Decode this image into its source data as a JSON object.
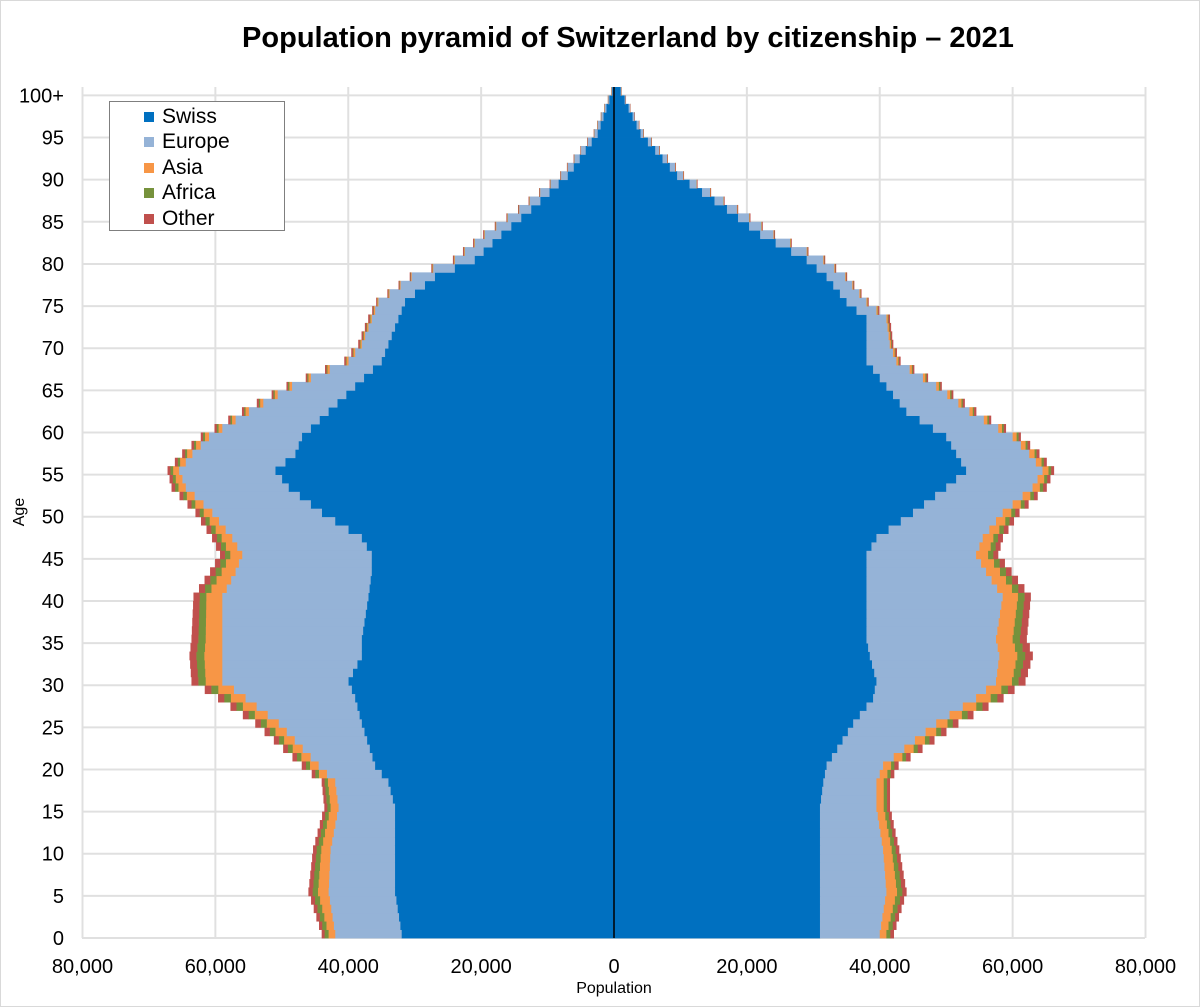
{
  "chart_data": {
    "type": "bar",
    "subtype": "population-pyramid",
    "title": "Population pyramid of Switzerland by citizenship – 2021",
    "xlabel": "Population",
    "ylabel": "Age",
    "xlim": [
      -80000,
      80000
    ],
    "x_tick_labels": [
      "80,000",
      "60,000",
      "40,000",
      "20,000",
      "0",
      "20,000",
      "40,000",
      "60,000",
      "80,000"
    ],
    "y_tick_labels": [
      "0",
      "5",
      "10",
      "15",
      "20",
      "25",
      "30",
      "35",
      "40",
      "45",
      "50",
      "55",
      "60",
      "65",
      "70",
      "75",
      "80",
      "85",
      "90",
      "95",
      "100+"
    ],
    "series_colors": {
      "Swiss": "#0070c0",
      "Europe": "#95b3d7",
      "Asia": "#f79646",
      "Africa": "#76923c",
      "Other": "#c0504d"
    },
    "legend": {
      "position": "top-left",
      "items": [
        {
          "name": "Swiss",
          "color": "#0070c0"
        },
        {
          "name": "Europe",
          "color": "#95b3d7"
        },
        {
          "name": "Asia",
          "color": "#f79646"
        },
        {
          "name": "Africa",
          "color": "#76923c"
        },
        {
          "name": "Other",
          "color": "#c0504d"
        }
      ]
    },
    "anchors": {
      "left": [
        [
          0,
          32000,
          10000,
          1000,
          600,
          400
        ],
        [
          5,
          33000,
          10000,
          1600,
          800,
          600
        ],
        [
          10,
          33000,
          9700,
          1400,
          700,
          500
        ],
        [
          15,
          33000,
          8500,
          1200,
          500,
          400
        ],
        [
          18,
          34000,
          8000,
          1100,
          500,
          400
        ],
        [
          20,
          36000,
          8500,
          1300,
          600,
          600
        ],
        [
          25,
          38000,
          12500,
          1800,
          900,
          800
        ],
        [
          28,
          39000,
          16500,
          2200,
          1000,
          900
        ],
        [
          30,
          40000,
          19000,
          2500,
          1100,
          1000
        ],
        [
          33,
          38000,
          21000,
          2700,
          1200,
          1000
        ],
        [
          35,
          38000,
          21000,
          2500,
          1100,
          1000
        ],
        [
          40,
          37000,
          22000,
          2400,
          1000,
          900
        ],
        [
          43,
          36500,
          20500,
          2100,
          900,
          800
        ],
        [
          45,
          36500,
          19500,
          1800,
          800,
          700
        ],
        [
          47,
          38000,
          19500,
          1600,
          700,
          700
        ],
        [
          50,
          44000,
          16500,
          1300,
          600,
          600
        ],
        [
          53,
          49000,
          15500,
          1100,
          500,
          500
        ],
        [
          55,
          51000,
          14500,
          900,
          400,
          400
        ],
        [
          57,
          48000,
          15500,
          800,
          300,
          400
        ],
        [
          59,
          47000,
          14000,
          600,
          300,
          300
        ],
        [
          62,
          43000,
          12000,
          500,
          200,
          300
        ],
        [
          65,
          39000,
          9500,
          400,
          200,
          200
        ],
        [
          68,
          35000,
          5000,
          300,
          100,
          200
        ],
        [
          70,
          34000,
          4000,
          200,
          100,
          200
        ],
        [
          73,
          32500,
          4000,
          200,
          100,
          200
        ],
        [
          75,
          31500,
          4000,
          150,
          50,
          100
        ],
        [
          78,
          27000,
          3500,
          100,
          50,
          100
        ],
        [
          80,
          21000,
          3000,
          100,
          50,
          100
        ],
        [
          83,
          17000,
          2500,
          80,
          40,
          80
        ],
        [
          86,
          12500,
          1800,
          60,
          30,
          60
        ],
        [
          90,
          7000,
          1000,
          40,
          20,
          40
        ],
        [
          95,
          2500,
          500,
          20,
          10,
          20
        ],
        [
          100,
          300,
          80,
          5,
          5,
          5
        ]
      ],
      "right": [
        [
          0,
          31000,
          9000,
          1000,
          600,
          500
        ],
        [
          5,
          31000,
          10000,
          1600,
          800,
          600
        ],
        [
          10,
          31000,
          9500,
          1300,
          600,
          500
        ],
        [
          15,
          31000,
          8500,
          1100,
          500,
          400
        ],
        [
          18,
          31500,
          8000,
          1100,
          500,
          400
        ],
        [
          20,
          32000,
          8500,
          1200,
          500,
          600
        ],
        [
          25,
          36000,
          12500,
          1700,
          800,
          800
        ],
        [
          28,
          39000,
          15500,
          2200,
          1000,
          900
        ],
        [
          30,
          39500,
          18000,
          2400,
          1000,
          1000
        ],
        [
          33,
          38500,
          19500,
          2700,
          1200,
          1100
        ],
        [
          35,
          38000,
          19500,
          2500,
          1100,
          1000
        ],
        [
          40,
          38000,
          20500,
          2300,
          1000,
          900
        ],
        [
          43,
          38000,
          18000,
          2100,
          900,
          800
        ],
        [
          45,
          38000,
          16500,
          1800,
          800,
          700
        ],
        [
          47,
          39500,
          16000,
          1600,
          700,
          700
        ],
        [
          50,
          45000,
          13500,
          1300,
          600,
          600
        ],
        [
          53,
          50000,
          13000,
          1100,
          500,
          500
        ],
        [
          55,
          53000,
          11500,
          900,
          400,
          400
        ],
        [
          57,
          51500,
          11000,
          800,
          300,
          400
        ],
        [
          59,
          50000,
          10000,
          600,
          300,
          300
        ],
        [
          62,
          44000,
          9500,
          500,
          200,
          300
        ],
        [
          65,
          41000,
          7500,
          400,
          200,
          200
        ],
        [
          68,
          38000,
          4500,
          300,
          100,
          200
        ],
        [
          70,
          38000,
          3500,
          200,
          100,
          200
        ],
        [
          73,
          38000,
          3000,
          200,
          100,
          200
        ],
        [
          75,
          35000,
          3000,
          150,
          50,
          100
        ],
        [
          78,
          32000,
          2800,
          100,
          50,
          100
        ],
        [
          80,
          29000,
          2500,
          100,
          50,
          100
        ],
        [
          83,
          22000,
          2000,
          80,
          40,
          80
        ],
        [
          86,
          17000,
          1500,
          60,
          30,
          60
        ],
        [
          90,
          9500,
          900,
          40,
          20,
          40
        ],
        [
          95,
          4000,
          400,
          20,
          10,
          20
        ],
        [
          100,
          1000,
          80,
          5,
          5,
          5
        ]
      ]
    }
  }
}
